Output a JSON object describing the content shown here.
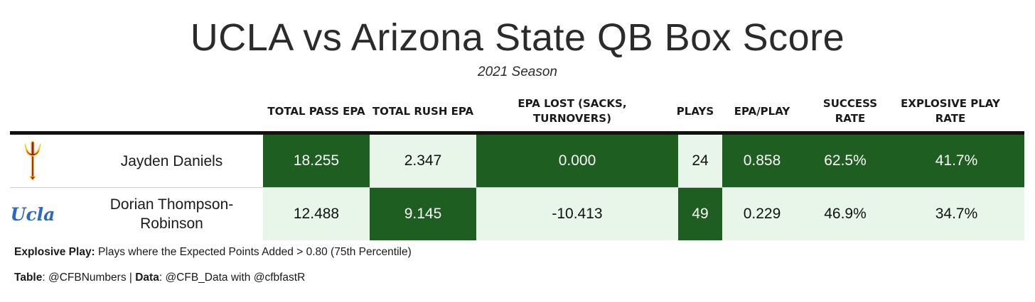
{
  "title": "UCLA vs Arizona State QB Box Score",
  "subtitle": "2021 Season",
  "colors": {
    "dark_green": "#1E5E20",
    "light_green": "#E8F5E9",
    "header_rule": "#111111",
    "ucla_blue": "#2D68C4",
    "asu_maroon": "#8C1D40",
    "asu_gold": "#FFC627"
  },
  "chart_data": {
    "type": "table",
    "title": "UCLA vs Arizona State QB Box Score",
    "subtitle": "2021 Season",
    "columns": [
      "TOTAL PASS EPA",
      "TOTAL RUSH EPA",
      "EPA LOST (SACKS, TURNOVERS)",
      "PLAYS",
      "EPA/PLAY",
      "SUCCESS RATE",
      "EXPLOSIVE PLAY RATE"
    ],
    "rows": [
      {
        "team_logo": "asu-pitchfork-icon",
        "player": "Jayden Daniels",
        "values": [
          "18.255",
          "2.347",
          "0.000",
          "24",
          "0.858",
          "62.5%",
          "41.7%"
        ],
        "highlight": [
          "dark",
          "light",
          "dark",
          "light",
          "dark",
          "dark",
          "dark"
        ]
      },
      {
        "team_logo": "ucla-logo",
        "logo_text": "Ucla",
        "player": "Dorian Thompson-Robinson",
        "values": [
          "12.488",
          "9.145",
          "-10.413",
          "49",
          "0.229",
          "46.9%",
          "34.7%"
        ],
        "highlight": [
          "light",
          "dark",
          "light",
          "dark",
          "light",
          "light",
          "light"
        ]
      }
    ]
  },
  "footnote": {
    "label": "Explosive Play:",
    "text": " Plays where the Expected Points Added > 0.80 (75th Percentile)"
  },
  "credits": {
    "table_label": "Table",
    "table_value": ": @CFBNumbers | ",
    "data_label": "Data",
    "data_value": ": @CFB_Data with @cfbfastR"
  }
}
